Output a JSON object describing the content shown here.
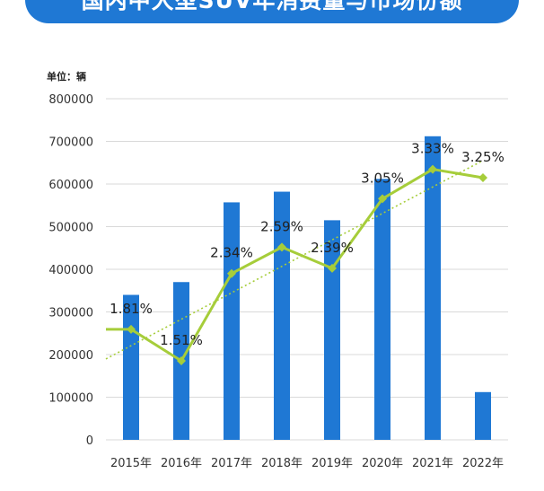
{
  "chart_data": {
    "type": "bar",
    "title": "国内中大型SUV年消费量与市场份额",
    "unit_label": "单位：辆",
    "categories": [
      "2015年",
      "2016年",
      "2017年",
      "2018年",
      "2019年",
      "2020年",
      "2021年",
      "2022年"
    ],
    "series": [
      {
        "type": "bar",
        "color": "#1f78d4",
        "values": [
          340000,
          370000,
          557000,
          582000,
          515000,
          612000,
          712000,
          112000
        ]
      },
      {
        "type": "line",
        "color": "#a6cd3a",
        "axis": "secondary",
        "values": [
          1.81,
          1.51,
          2.34,
          2.59,
          2.39,
          3.05,
          3.33,
          3.25
        ],
        "labels": [
          "1.81%",
          "1.51%",
          "2.34%",
          "2.59%",
          "2.39%",
          "3.05%",
          "3.33%",
          "3.25%"
        ]
      }
    ],
    "trendline": {
      "type": "linear",
      "style": "dotted",
      "color": "#a6cd3a"
    },
    "ylim": [
      0,
      800000
    ],
    "yticks": [
      0,
      100000,
      200000,
      300000,
      400000,
      500000,
      600000,
      700000,
      800000
    ],
    "grid": true,
    "legend": "none"
  }
}
